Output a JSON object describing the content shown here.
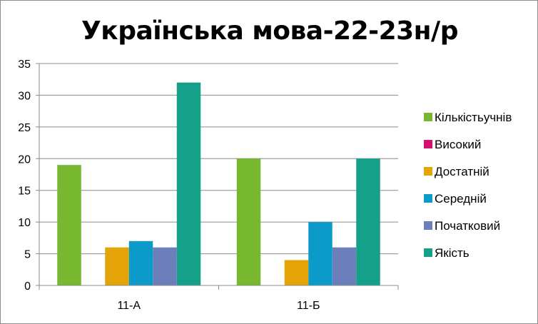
{
  "chart_data": {
    "type": "bar",
    "title": "Українська мова-22-23н/р",
    "categories": [
      "11-А",
      "11-Б"
    ],
    "series": [
      {
        "name": "Кількістьучнів",
        "values": [
          19,
          20
        ],
        "color": "#77b830"
      },
      {
        "name": "Високий",
        "values": [
          0,
          0
        ],
        "color": "#d4116e"
      },
      {
        "name": "Достатній",
        "values": [
          6,
          4
        ],
        "color": "#e4a407"
      },
      {
        "name": "Середній",
        "values": [
          7,
          10
        ],
        "color": "#0c9bc9"
      },
      {
        "name": "Початковий",
        "values": [
          6,
          6
        ],
        "color": "#6c7fba"
      },
      {
        "name": "Якість",
        "values": [
          32,
          20
        ],
        "color": "#15a08a"
      }
    ],
    "ylim": [
      0,
      35
    ],
    "yticks": [
      0,
      5,
      10,
      15,
      20,
      25,
      30,
      35
    ],
    "grid": true,
    "legend": "right"
  }
}
